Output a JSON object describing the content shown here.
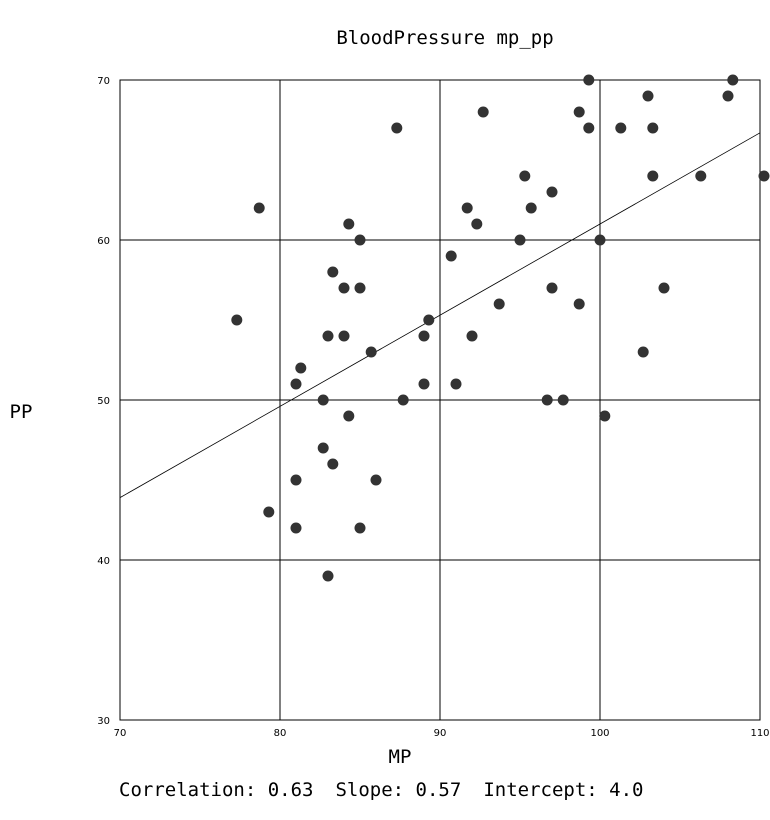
{
  "chart_data": {
    "type": "scatter",
    "title": "BloodPressure mp_pp",
    "xlabel": "MP",
    "ylabel": "PP",
    "xlim": [
      70,
      110
    ],
    "ylim": [
      30,
      70
    ],
    "xticks": [
      70,
      80,
      90,
      100,
      110
    ],
    "yticks": [
      30,
      40,
      50,
      60,
      70
    ],
    "grid": true,
    "marker_color": "#333333",
    "points": [
      {
        "x": 77.3,
        "y": 55
      },
      {
        "x": 78.7,
        "y": 62
      },
      {
        "x": 79.3,
        "y": 43
      },
      {
        "x": 81.0,
        "y": 45
      },
      {
        "x": 81.0,
        "y": 42
      },
      {
        "x": 81.0,
        "y": 51
      },
      {
        "x": 81.3,
        "y": 52
      },
      {
        "x": 82.7,
        "y": 50
      },
      {
        "x": 82.7,
        "y": 47
      },
      {
        "x": 83.0,
        "y": 54
      },
      {
        "x": 83.0,
        "y": 39
      },
      {
        "x": 83.3,
        "y": 58
      },
      {
        "x": 83.3,
        "y": 46
      },
      {
        "x": 84.0,
        "y": 57
      },
      {
        "x": 84.0,
        "y": 54
      },
      {
        "x": 84.3,
        "y": 61
      },
      {
        "x": 84.3,
        "y": 49
      },
      {
        "x": 85.0,
        "y": 60
      },
      {
        "x": 85.0,
        "y": 57
      },
      {
        "x": 85.0,
        "y": 42
      },
      {
        "x": 85.7,
        "y": 53
      },
      {
        "x": 86.0,
        "y": 45
      },
      {
        "x": 87.3,
        "y": 67
      },
      {
        "x": 87.7,
        "y": 50
      },
      {
        "x": 89.0,
        "y": 54
      },
      {
        "x": 89.0,
        "y": 51
      },
      {
        "x": 89.3,
        "y": 55
      },
      {
        "x": 90.7,
        "y": 59
      },
      {
        "x": 91.0,
        "y": 51
      },
      {
        "x": 91.7,
        "y": 62
      },
      {
        "x": 92.0,
        "y": 54
      },
      {
        "x": 92.3,
        "y": 61
      },
      {
        "x": 92.7,
        "y": 68
      },
      {
        "x": 93.7,
        "y": 56
      },
      {
        "x": 95.0,
        "y": 60
      },
      {
        "x": 95.3,
        "y": 64
      },
      {
        "x": 95.7,
        "y": 62
      },
      {
        "x": 96.7,
        "y": 50
      },
      {
        "x": 97.0,
        "y": 63
      },
      {
        "x": 97.0,
        "y": 57
      },
      {
        "x": 97.7,
        "y": 50
      },
      {
        "x": 98.7,
        "y": 68
      },
      {
        "x": 98.7,
        "y": 56
      },
      {
        "x": 99.3,
        "y": 70
      },
      {
        "x": 99.3,
        "y": 67
      },
      {
        "x": 100.0,
        "y": 60
      },
      {
        "x": 100.3,
        "y": 49
      },
      {
        "x": 101.3,
        "y": 67
      },
      {
        "x": 102.7,
        "y": 53
      },
      {
        "x": 103.0,
        "y": 69
      },
      {
        "x": 103.3,
        "y": 67
      },
      {
        "x": 103.3,
        "y": 64
      },
      {
        "x": 104.0,
        "y": 57
      },
      {
        "x": 106.3,
        "y": 64
      },
      {
        "x": 108.0,
        "y": 69
      },
      {
        "x": 108.3,
        "y": 70
      },
      {
        "x": 110.3,
        "y": 64
      }
    ],
    "regression_line": {
      "slope": 0.57,
      "intercept": 4.0
    },
    "stats": {
      "correlation": "Correlation: 0.63",
      "slope": "Slope: 0.57",
      "intercept": "Intercept: 4.0"
    }
  }
}
